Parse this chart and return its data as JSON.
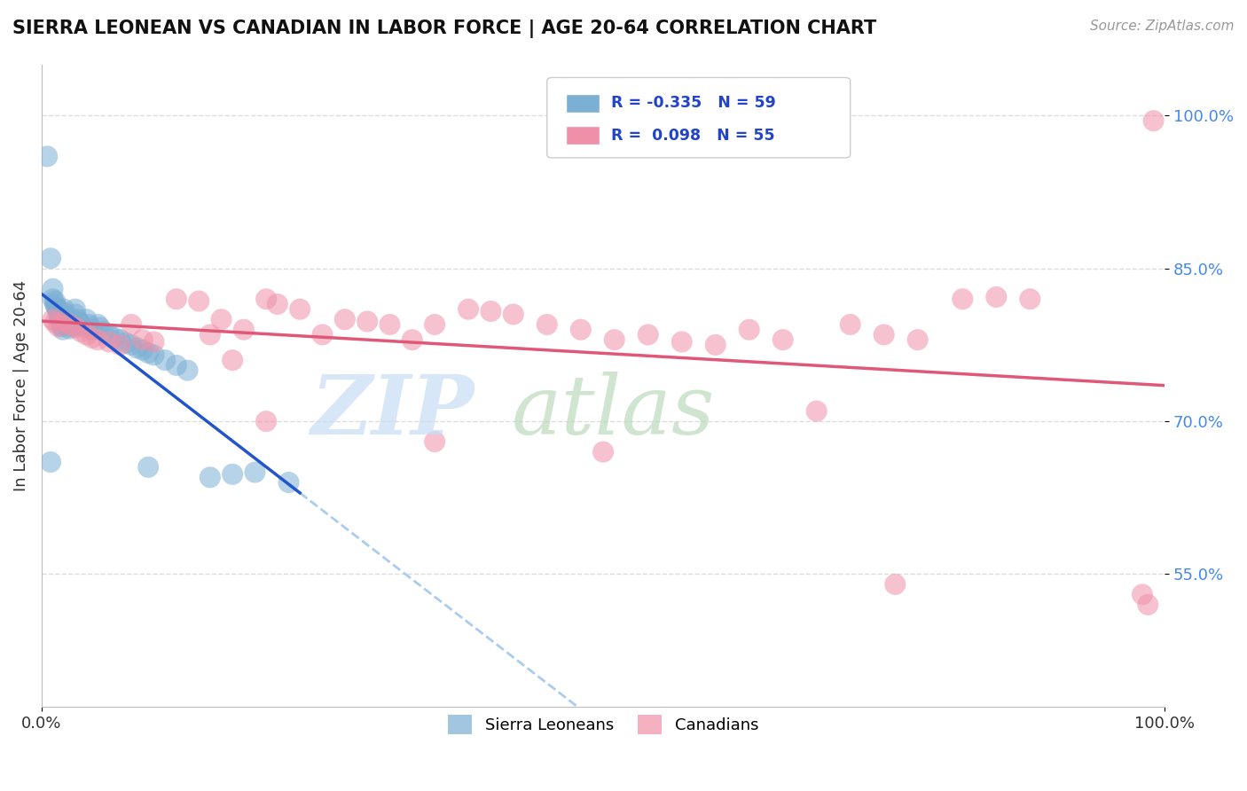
{
  "title": "SIERRA LEONEAN VS CANADIAN IN LABOR FORCE | AGE 20-64 CORRELATION CHART",
  "source_text": "Source: ZipAtlas.com",
  "ylabel": "In Labor Force | Age 20-64",
  "xlim": [
    0.0,
    1.0
  ],
  "ylim": [
    0.42,
    1.05
  ],
  "yticks": [
    0.55,
    0.7,
    0.85,
    1.0
  ],
  "ytick_labels": [
    "55.0%",
    "70.0%",
    "85.0%",
    "100.0%"
  ],
  "xticks": [
    0.0,
    1.0
  ],
  "xtick_labels": [
    "0.0%",
    "100.0%"
  ],
  "blue_color": "#7bafd4",
  "pink_color": "#f090a8",
  "blue_line_color": "#2255cc",
  "pink_line_color": "#e05878",
  "dash_line_color": "#aaccee",
  "grid_color": "#dddddd",
  "background_color": "#ffffff",
  "blue_R": -0.335,
  "blue_N": 59,
  "pink_R": 0.098,
  "pink_N": 55,
  "sierra_x": [
    0.005,
    0.008,
    0.01,
    0.01,
    0.012,
    0.012,
    0.013,
    0.014,
    0.015,
    0.015,
    0.016,
    0.016,
    0.017,
    0.018,
    0.018,
    0.019,
    0.02,
    0.02,
    0.02,
    0.021,
    0.022,
    0.022,
    0.023,
    0.024,
    0.025,
    0.025,
    0.026,
    0.027,
    0.028,
    0.03,
    0.03,
    0.032,
    0.034,
    0.035,
    0.037,
    0.04,
    0.042,
    0.045,
    0.05,
    0.052,
    0.055,
    0.06,
    0.065,
    0.07,
    0.075,
    0.08,
    0.085,
    0.09,
    0.095,
    0.1,
    0.11,
    0.12,
    0.13,
    0.15,
    0.17,
    0.19,
    0.22,
    0.095,
    0.008
  ],
  "sierra_y": [
    0.96,
    0.86,
    0.83,
    0.82,
    0.818,
    0.815,
    0.812,
    0.81,
    0.808,
    0.805,
    0.803,
    0.8,
    0.798,
    0.795,
    0.793,
    0.79,
    0.81,
    0.807,
    0.804,
    0.801,
    0.798,
    0.795,
    0.8,
    0.797,
    0.794,
    0.791,
    0.8,
    0.797,
    0.794,
    0.81,
    0.805,
    0.8,
    0.797,
    0.795,
    0.793,
    0.8,
    0.795,
    0.79,
    0.795,
    0.792,
    0.788,
    0.785,
    0.782,
    0.78,
    0.777,
    0.775,
    0.772,
    0.77,
    0.767,
    0.765,
    0.76,
    0.755,
    0.75,
    0.645,
    0.648,
    0.65,
    0.64,
    0.655,
    0.66
  ],
  "canada_x": [
    0.01,
    0.012,
    0.015,
    0.02,
    0.025,
    0.03,
    0.035,
    0.04,
    0.045,
    0.05,
    0.06,
    0.07,
    0.08,
    0.09,
    0.1,
    0.12,
    0.14,
    0.15,
    0.16,
    0.17,
    0.18,
    0.2,
    0.21,
    0.23,
    0.25,
    0.27,
    0.29,
    0.31,
    0.33,
    0.35,
    0.38,
    0.4,
    0.42,
    0.45,
    0.48,
    0.51,
    0.54,
    0.57,
    0.6,
    0.63,
    0.66,
    0.69,
    0.72,
    0.75,
    0.78,
    0.82,
    0.85,
    0.88,
    0.2,
    0.35,
    0.5,
    0.76,
    0.98,
    0.985,
    0.99
  ],
  "canada_y": [
    0.8,
    0.797,
    0.793,
    0.798,
    0.795,
    0.792,
    0.788,
    0.785,
    0.782,
    0.78,
    0.778,
    0.775,
    0.795,
    0.78,
    0.778,
    0.82,
    0.818,
    0.785,
    0.8,
    0.76,
    0.79,
    0.82,
    0.815,
    0.81,
    0.785,
    0.8,
    0.798,
    0.795,
    0.78,
    0.795,
    0.81,
    0.808,
    0.805,
    0.795,
    0.79,
    0.78,
    0.785,
    0.778,
    0.775,
    0.79,
    0.78,
    0.71,
    0.795,
    0.785,
    0.78,
    0.82,
    0.822,
    0.82,
    0.7,
    0.68,
    0.67,
    0.54,
    0.53,
    0.52,
    0.995
  ]
}
